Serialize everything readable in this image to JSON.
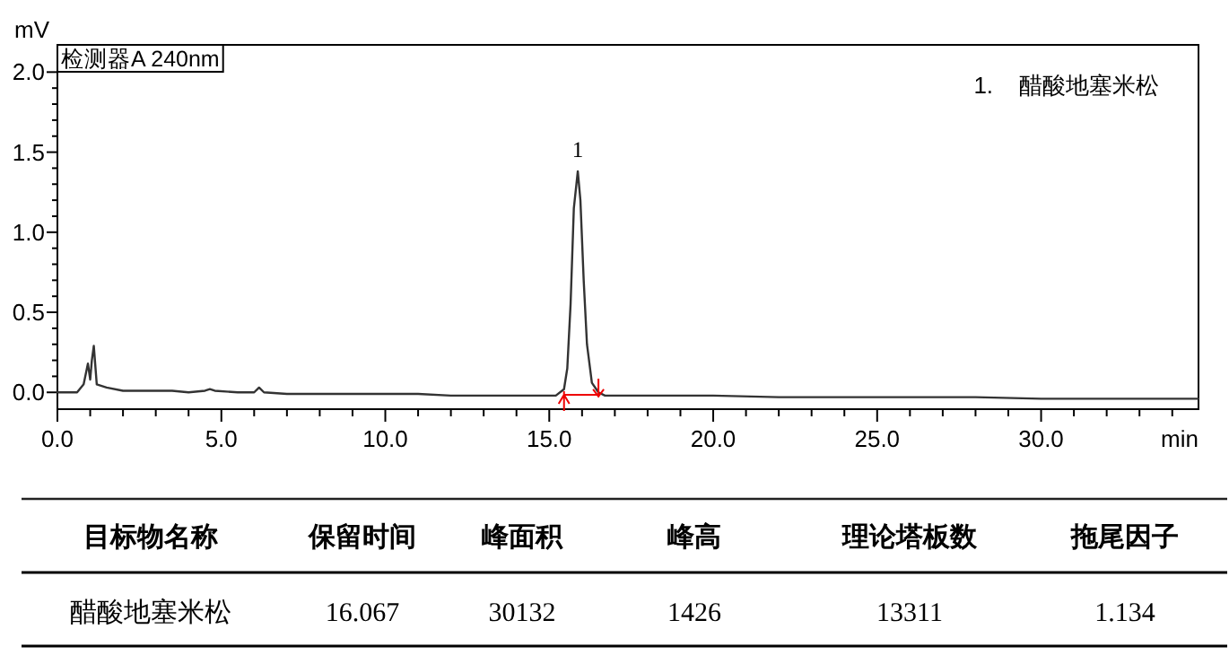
{
  "chart_data": [
    {
      "type": "line",
      "subtitle": "检测器A 240nm",
      "xlabel": "min",
      "ylabel": "mV",
      "annotations": [
        "1.    醋酸地塞米松",
        {
          "text": "1",
          "x": 15.87,
          "y": 1.38
        }
      ],
      "xlim": [
        0,
        34.8
      ],
      "ylim": [
        -0.105,
        2.17
      ],
      "xticks": [
        {
          "value": 0,
          "label": "0.0"
        },
        {
          "value": 1,
          "label": null
        },
        {
          "value": 2,
          "label": null
        },
        {
          "value": 3,
          "label": null
        },
        {
          "value": 4,
          "label": null
        },
        {
          "value": 5,
          "label": "5.0"
        },
        {
          "value": 6,
          "label": null
        },
        {
          "value": 7,
          "label": null
        },
        {
          "value": 8,
          "label": null
        },
        {
          "value": 9,
          "label": null
        },
        {
          "value": 10,
          "label": "10.0"
        },
        {
          "value": 11,
          "label": null
        },
        {
          "value": 12,
          "label": null
        },
        {
          "value": 13,
          "label": null
        },
        {
          "value": 14,
          "label": null
        },
        {
          "value": 15,
          "label": "15.0"
        },
        {
          "value": 16,
          "label": null
        },
        {
          "value": 17,
          "label": null
        },
        {
          "value": 18,
          "label": null
        },
        {
          "value": 19,
          "label": null
        },
        {
          "value": 20,
          "label": "20.0"
        },
        {
          "value": 21,
          "label": null
        },
        {
          "value": 22,
          "label": null
        },
        {
          "value": 23,
          "label": null
        },
        {
          "value": 24,
          "label": null
        },
        {
          "value": 25,
          "label": "25.0"
        },
        {
          "value": 26,
          "label": null
        },
        {
          "value": 27,
          "label": null
        },
        {
          "value": 28,
          "label": null
        },
        {
          "value": 29,
          "label": null
        },
        {
          "value": 30,
          "label": "30.0"
        },
        {
          "value": 31,
          "label": null
        },
        {
          "value": 32,
          "label": null
        },
        {
          "value": 33,
          "label": null
        },
        {
          "value": 34,
          "label": null
        }
      ],
      "yticks": [
        {
          "value": 0,
          "label": "0.0"
        },
        {
          "value": 0.1,
          "label": null
        },
        {
          "value": 0.2,
          "label": null
        },
        {
          "value": 0.3,
          "label": null
        },
        {
          "value": 0.4,
          "label": null
        },
        {
          "value": 0.5,
          "label": "0.5"
        },
        {
          "value": 0.6,
          "label": null
        },
        {
          "value": 0.7,
          "label": null
        },
        {
          "value": 0.8,
          "label": null
        },
        {
          "value": 0.9,
          "label": null
        },
        {
          "value": 1.0,
          "label": "1.0"
        },
        {
          "value": 1.1,
          "label": null
        },
        {
          "value": 1.2,
          "label": null
        },
        {
          "value": 1.3,
          "label": null
        },
        {
          "value": 1.4,
          "label": null
        },
        {
          "value": 1.5,
          "label": "1.5"
        },
        {
          "value": 1.6,
          "label": null
        },
        {
          "value": 1.7,
          "label": null
        },
        {
          "value": 1.8,
          "label": null
        },
        {
          "value": 1.9,
          "label": null
        },
        {
          "value": 2.0,
          "label": "2.0"
        }
      ],
      "grid": false,
      "marker": "none",
      "line_style": "solid",
      "series": [
        {
          "color": "#333333",
          "x": [
            0,
            0.6,
            0.8,
            0.93,
            1.0,
            1.05,
            1.11,
            1.2,
            1.5,
            2.0,
            2.5,
            3.0,
            3.5,
            4.0,
            4.5,
            4.65,
            4.8,
            5.5,
            6.0,
            6.15,
            6.3,
            7,
            8,
            9,
            10,
            11,
            12,
            13,
            14,
            15,
            15.2,
            15.45,
            15.55,
            15.65,
            15.75,
            15.87,
            15.95,
            16.05,
            16.15,
            16.3,
            16.5,
            16.7,
            17,
            18,
            19,
            20,
            22,
            24,
            25,
            26,
            28,
            30,
            32,
            34,
            34.8
          ],
          "values": [
            0,
            0,
            0.05,
            0.18,
            0.08,
            0.2,
            0.29,
            0.05,
            0.03,
            0.01,
            0.01,
            0.01,
            0.01,
            0.0,
            0.01,
            0.02,
            0.01,
            0.0,
            0.0,
            0.03,
            0.0,
            -0.01,
            -0.01,
            -0.01,
            -0.01,
            -0.01,
            -0.02,
            -0.02,
            -0.02,
            -0.02,
            -0.02,
            0.02,
            0.15,
            0.55,
            1.15,
            1.38,
            1.2,
            0.7,
            0.3,
            0.06,
            0.0,
            -0.02,
            -0.02,
            -0.02,
            -0.02,
            -0.02,
            -0.03,
            -0.03,
            -0.03,
            -0.03,
            -0.03,
            -0.04,
            -0.04,
            -0.04,
            -0.04
          ]
        }
      ]
    },
    {
      "type": "other",
      "categories": [
        "目标物名称",
        "保留时间",
        "峰面积",
        "峰高",
        "理论塔板数",
        "拖尾因子"
      ],
      "value_labels": [
        "醋酸地塞米松",
        "16.067",
        "30132",
        "1426",
        "13311",
        "1.134"
      ]
    }
  ]
}
